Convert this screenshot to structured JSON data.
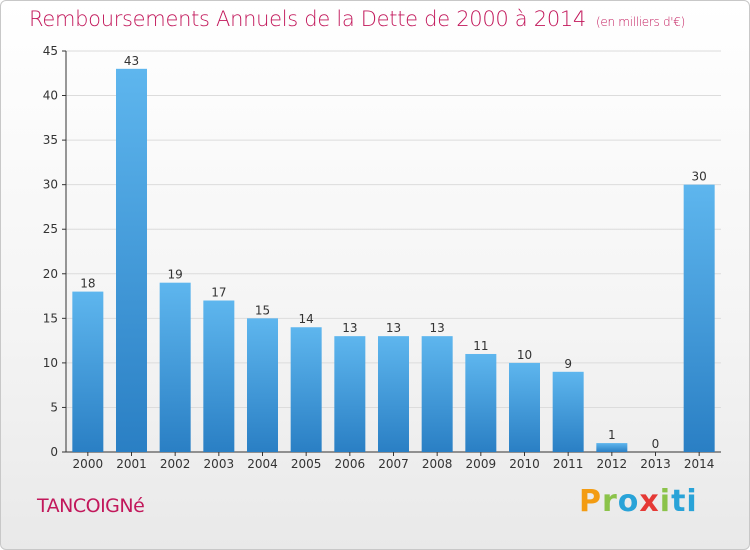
{
  "chart_data": {
    "type": "bar",
    "title": "Remboursements Annuels de la Dette de 2000 à 2014",
    "unit_note": "(en milliers d'€)",
    "categories": [
      "2000",
      "2001",
      "2002",
      "2003",
      "2004",
      "2005",
      "2006",
      "2007",
      "2008",
      "2009",
      "2010",
      "2011",
      "2012",
      "2013",
      "2014"
    ],
    "values": [
      18,
      43,
      19,
      17,
      15,
      14,
      13,
      13,
      13,
      11,
      10,
      9,
      1,
      0,
      30
    ],
    "ylim": [
      0,
      45
    ],
    "yticks": [
      0,
      5,
      10,
      15,
      20,
      25,
      30,
      35,
      40,
      45
    ],
    "xlabel": "",
    "ylabel": "",
    "grid": true
  },
  "location": "TANCOIGNé",
  "brand": {
    "letters": [
      "P",
      "r",
      "o",
      "x",
      "i",
      "t",
      "i"
    ]
  },
  "colors": {
    "title": "#c2185b",
    "bar_top": "#5eb6ee",
    "bar_bottom": "#2a7fc4",
    "axis": "#333333"
  }
}
